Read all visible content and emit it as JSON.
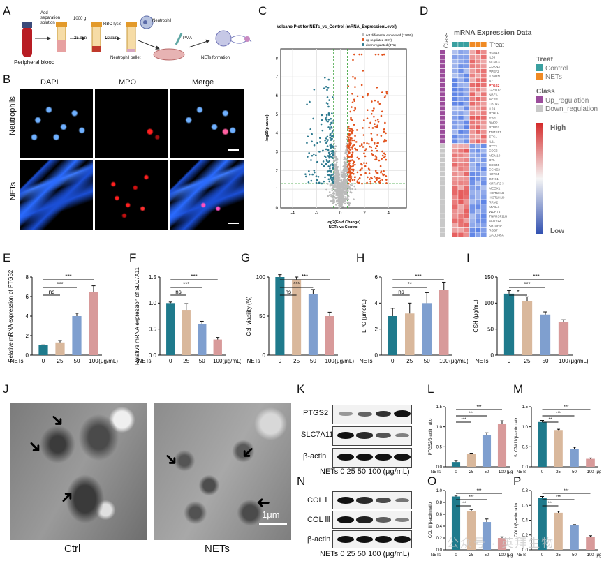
{
  "panel_letters": [
    "A",
    "B",
    "C",
    "D",
    "E",
    "F",
    "G",
    "H",
    "I",
    "J",
    "K",
    "L",
    "M",
    "N",
    "O",
    "P"
  ],
  "panelA": {
    "steps": [
      "Add separation solution",
      "1000 g",
      "25 min",
      "RBC lysis",
      "10 min",
      "Neutrophil",
      "Neutrophil pellet",
      "PMA",
      "NETs formation"
    ],
    "source": "Peripheral blood"
  },
  "panelB": {
    "columns": [
      "DAPI",
      "MPO",
      "Merge"
    ],
    "rows": [
      "Neutrophils",
      "NETs"
    ]
  },
  "panelC": {
    "title": "Volcano Plot for NETs_vs_Control (mRNA_ExpressionLevel)",
    "legend": [
      "not differential expressed (17665)",
      "up-regulated (697)",
      "down-regulated (371)"
    ],
    "xlabel": "log2(Fold Change)",
    "xsub": "NETs vs Control",
    "ylabel": "-log10(p-value)",
    "xticks": [
      "-4",
      "-2",
      "0",
      "2",
      "4"
    ],
    "yticks": [
      "0",
      "1",
      "2",
      "3",
      "4",
      "5",
      "6",
      "7",
      "8"
    ]
  },
  "panelD": {
    "title": "mRNA Expression Data",
    "class_label": "Class",
    "treat_label": "Treat",
    "legend_treat": "Treat",
    "treat_items": [
      "Control",
      "NETs"
    ],
    "legend_class": "Class",
    "class_items": [
      "Up_regulation",
      "Down_regulation"
    ],
    "scale_high": "High",
    "scale_low": "Low",
    "genes": [
      "RGS16",
      "IL33",
      "KCNK3",
      "CDKN3",
      "PPEF2",
      "IL36RN",
      "SYT7",
      "PTGS2",
      "GPR183",
      "NBEA",
      "ACPP",
      "CBLN2",
      "IL24",
      "PTHLH",
      "EXG",
      "BMP2",
      "BTBD7",
      "TM4SF1",
      "STC1",
      "IL11",
      "PTX3",
      "CDC6",
      "MCM10",
      "DTL",
      "CDC45",
      "CCNE2",
      "KRT34",
      "GINS1",
      "KRTAP2-3",
      "MEOX1",
      "HIST1H1B",
      "HIST1H1D",
      "RRM2",
      "MYBL1",
      "WDR76",
      "TNFRSF11B",
      "ELOVL2",
      "KRTAP4-7",
      "RGS7",
      "GADD45A"
    ]
  },
  "bar_panels": {
    "E": {
      "ylabel": "Relative mRNA expression of PTGS2",
      "ylim": [
        0,
        8
      ],
      "yticks": [
        "0",
        "2",
        "4",
        "6",
        "8"
      ],
      "sig": [
        "ns",
        "***",
        "***"
      ]
    },
    "F": {
      "ylabel": "Relative mRNA expression of SLC7A11",
      "ylim": [
        0,
        1.5
      ],
      "yticks": [
        "0.0",
        "0.5",
        "1.0",
        "1.5"
      ],
      "sig": [
        "ns",
        "***",
        "***"
      ]
    },
    "G": {
      "ylabel": "Cell viability (%)",
      "ylim": [
        0,
        100
      ],
      "yticks": [
        "0",
        "50",
        "100"
      ],
      "sig": [
        "ns",
        "***",
        "***"
      ]
    },
    "H": {
      "ylabel": "LPO (μmol/L)",
      "ylim": [
        0,
        6
      ],
      "yticks": [
        "0",
        "2",
        "4",
        "6"
      ],
      "sig": [
        "ns",
        "**",
        "***"
      ]
    },
    "I": {
      "ylabel": "GSH (μg/mL)",
      "ylim": [
        0,
        150
      ],
      "yticks": [
        "0",
        "50",
        "100",
        "150"
      ],
      "sig": [
        "*",
        "***",
        "***"
      ]
    },
    "L": {
      "ylabel": "PTGS2/β-actin ratio",
      "ylim": [
        0,
        1.5
      ],
      "yticks": [
        "0.0",
        "0.5",
        "1.0",
        "1.5"
      ],
      "sig": [
        "***",
        "***",
        "***"
      ]
    },
    "M": {
      "ylabel": "SLC7A11/β-actin ratio",
      "ylim": [
        0,
        1.5
      ],
      "yticks": [
        "0.0",
        "0.5",
        "1.0",
        "1.5"
      ],
      "sig": [
        "**",
        "***",
        "***"
      ]
    },
    "O": {
      "ylabel": "COL Ⅲ/β-actin ratio",
      "ylim": [
        0,
        1.0
      ],
      "yticks": [
        "0.0",
        "0.2",
        "0.4",
        "0.6",
        "0.8",
        "1.0"
      ],
      "sig": [
        "***",
        "***",
        "***"
      ]
    },
    "P": {
      "ylabel": "COL Ⅰ/β-actin ratio",
      "ylim": [
        0,
        0.8
      ],
      "yticks": [
        "0.0",
        "0.2",
        "0.4",
        "0.6",
        "0.8"
      ],
      "sig": [
        "***",
        "***",
        "***"
      ]
    }
  },
  "xaxis": {
    "prefix": "NETs",
    "doses": [
      "0",
      "25",
      "50",
      "100"
    ],
    "unit": "(μg/mL)"
  },
  "bar_colors": [
    "#1f7a8c",
    "#d9b89c",
    "#7f9fcf",
    "#d89a9a"
  ],
  "chart_data": [
    {
      "type": "bar",
      "title": "E",
      "categories": [
        "0",
        "25",
        "50",
        "100"
      ],
      "values": [
        1.0,
        1.3,
        4.0,
        6.5
      ],
      "errors": [
        0.05,
        0.2,
        0.3,
        0.6
      ],
      "ylabel": "Relative mRNA expression of PTGS2",
      "ylim": [
        0,
        8
      ]
    },
    {
      "type": "bar",
      "title": "F",
      "categories": [
        "0",
        "25",
        "50",
        "100"
      ],
      "values": [
        1.0,
        0.87,
        0.6,
        0.3
      ],
      "errors": [
        0.02,
        0.12,
        0.05,
        0.04
      ],
      "ylabel": "Relative mRNA expression of SLC7A11",
      "ylim": [
        0,
        1.5
      ]
    },
    {
      "type": "bar",
      "title": "G",
      "categories": [
        "0",
        "25",
        "50",
        "100"
      ],
      "values": [
        100,
        97,
        78,
        50
      ],
      "errors": [
        3,
        3,
        6,
        5
      ],
      "ylabel": "Cell viability (%)",
      "ylim": [
        0,
        100
      ]
    },
    {
      "type": "bar",
      "title": "H",
      "categories": [
        "0",
        "25",
        "50",
        "100"
      ],
      "values": [
        3.0,
        3.2,
        4.0,
        5.0
      ],
      "errors": [
        0.6,
        0.8,
        0.8,
        0.6
      ],
      "ylabel": "LPO (μmol/L)",
      "ylim": [
        0,
        6
      ]
    },
    {
      "type": "bar",
      "title": "I",
      "categories": [
        "0",
        "25",
        "50",
        "100"
      ],
      "values": [
        118,
        104,
        78,
        63
      ],
      "errors": [
        6,
        8,
        5,
        5
      ],
      "ylabel": "GSH (μg/mL)",
      "ylim": [
        0,
        150
      ]
    },
    {
      "type": "bar",
      "title": "L",
      "categories": [
        "0",
        "25",
        "50",
        "100"
      ],
      "values": [
        0.12,
        0.32,
        0.8,
        1.08
      ],
      "errors": [
        0.04,
        0.02,
        0.05,
        0.07
      ],
      "ylabel": "PTGS2/β-actin ratio",
      "ylim": [
        0,
        1.5
      ]
    },
    {
      "type": "bar",
      "title": "M",
      "categories": [
        "0",
        "25",
        "50",
        "100"
      ],
      "values": [
        1.12,
        0.92,
        0.45,
        0.2
      ],
      "errors": [
        0.04,
        0.02,
        0.04,
        0.02
      ],
      "ylabel": "SLC7A11/β-actin ratio",
      "ylim": [
        0,
        1.5
      ]
    },
    {
      "type": "bar",
      "title": "O",
      "categories": [
        "0",
        "25",
        "50",
        "100"
      ],
      "values": [
        0.9,
        0.65,
        0.47,
        0.2
      ],
      "errors": [
        0.02,
        0.03,
        0.05,
        0.02
      ],
      "ylabel": "COL Ⅲ/β-actin ratio",
      "ylim": [
        0,
        1.0
      ]
    },
    {
      "type": "bar",
      "title": "P",
      "categories": [
        "0",
        "25",
        "50",
        "100"
      ],
      "values": [
        0.7,
        0.5,
        0.33,
        0.17
      ],
      "errors": [
        0.02,
        0.02,
        0.01,
        0.02
      ],
      "ylabel": "COL Ⅰ/β-actin ratio",
      "ylim": [
        0,
        0.8
      ]
    }
  ],
  "panelJ": {
    "labels": [
      "Ctrl",
      "NETs"
    ],
    "scalebar": "1μm"
  },
  "panelK": {
    "proteins": [
      "PTGS2",
      "SLC7A11",
      "β-actin"
    ],
    "band_levels": [
      [
        0.2,
        0.5,
        0.8,
        1.0
      ],
      [
        1.0,
        0.85,
        0.6,
        0.35
      ],
      [
        1.0,
        1.0,
        1.0,
        1.0
      ]
    ]
  },
  "panelN": {
    "proteins": [
      "COL Ⅰ",
      "COL Ⅲ",
      "β-actin"
    ],
    "band_levels": [
      [
        1.0,
        0.85,
        0.65,
        0.4
      ],
      [
        1.0,
        0.9,
        0.55,
        0.35
      ],
      [
        1.0,
        1.0,
        1.0,
        1.0
      ]
    ]
  },
  "watermark": "公众号 · 英拜生物"
}
